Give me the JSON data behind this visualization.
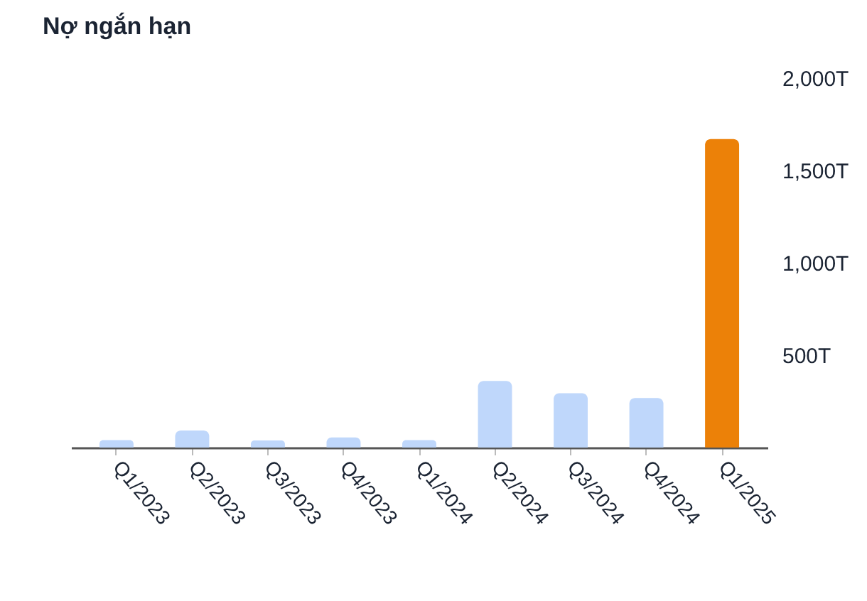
{
  "chart_data": {
    "type": "bar",
    "title": "Nợ ngắn hạn",
    "categories": [
      "Q1/2023",
      "Q2/2023",
      "Q3/2023",
      "Q4/2023",
      "Q1/2024",
      "Q2/2024",
      "Q3/2024",
      "Q4/2024",
      "Q1/2025"
    ],
    "values": [
      40,
      92,
      38,
      55,
      40,
      361,
      294,
      268,
      1670
    ],
    "colors": [
      "#bfd7fb",
      "#bfd7fb",
      "#bfd7fb",
      "#bfd7fb",
      "#bfd7fb",
      "#bfd7fb",
      "#bfd7fb",
      "#bfd7fb",
      "#ec8108"
    ],
    "ylim": [
      0,
      2000
    ],
    "yticks": [
      {
        "value": 500,
        "label": "500T"
      },
      {
        "value": 1000,
        "label": "1,000T"
      },
      {
        "value": 1500,
        "label": "1,500T"
      },
      {
        "value": 2000,
        "label": "2,000T"
      }
    ],
    "grid": false
  }
}
